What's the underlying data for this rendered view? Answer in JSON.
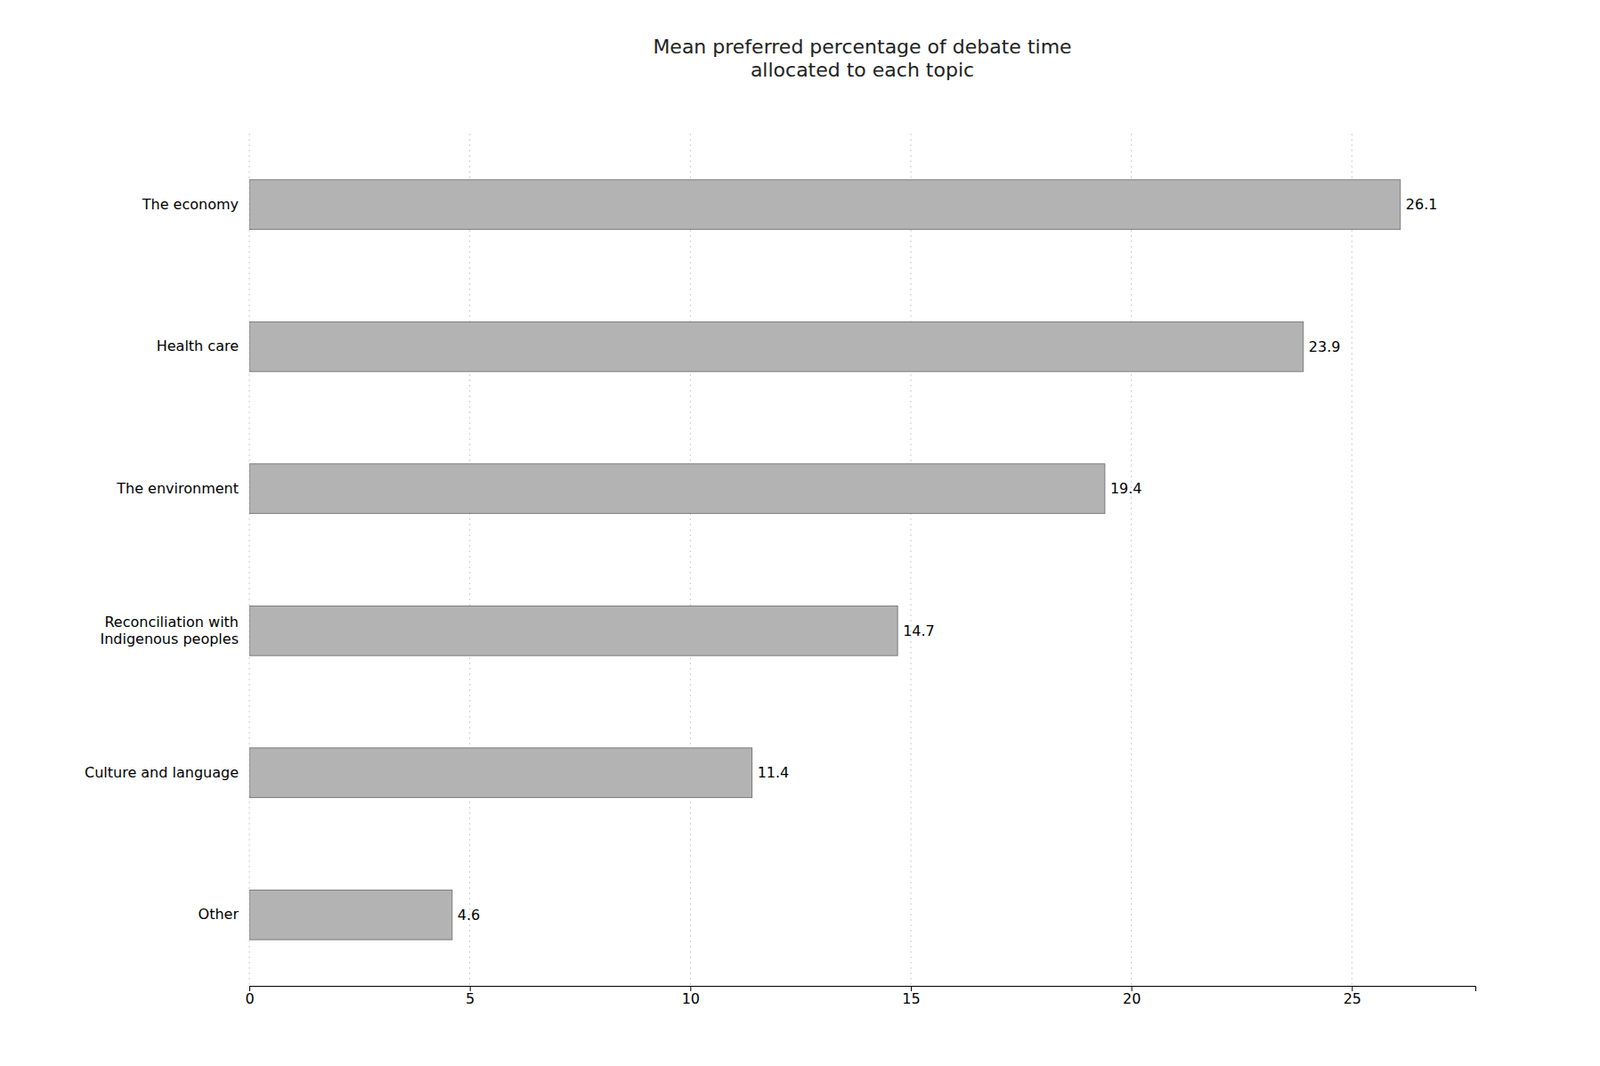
{
  "chart_data": {
    "type": "bar",
    "orientation": "horizontal",
    "title": "Mean preferred percentage of debate time\nallocated to each topic",
    "categories": [
      "Other",
      "Culture and language",
      "Reconciliation with\nIndigenous peoples",
      "The environment",
      "Health care",
      "The economy"
    ],
    "values": [
      4.6,
      11.4,
      14.7,
      19.4,
      23.9,
      26.1
    ],
    "color": "#b3b3b3",
    "xlim": [
      0,
      27.8
    ],
    "xticks": [
      0,
      5,
      10,
      15,
      20,
      25
    ],
    "grid": true,
    "data_labels": true
  }
}
